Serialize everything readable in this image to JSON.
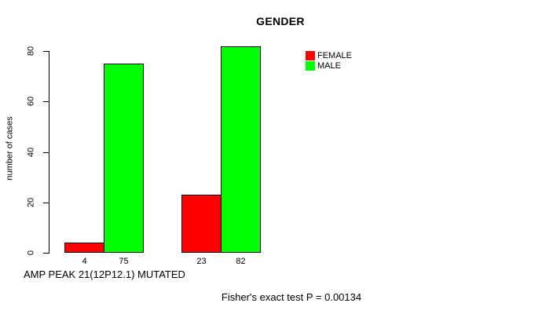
{
  "figure": {
    "title": "GENDER",
    "y_axis_label": "number of cases",
    "x_axis_label": "AMP PEAK 21(12P12.1) MUTATED",
    "annotation": "Fisher's exact test P = 0.00134"
  },
  "legend": {
    "items": [
      {
        "label": "FEMALE",
        "color": "#ff0000"
      },
      {
        "label": "MALE",
        "color": "#00ff00"
      }
    ]
  },
  "chart_data": {
    "type": "bar",
    "title": "GENDER",
    "xlabel": "AMP PEAK 21(12P12.1) MUTATED",
    "ylabel": "number of cases",
    "categories": [
      "",
      ""
    ],
    "series": [
      {
        "name": "FEMALE",
        "color": "#ff0000",
        "values": [
          4,
          23
        ]
      },
      {
        "name": "MALE",
        "color": "#00ff00",
        "values": [
          75,
          82
        ]
      }
    ],
    "yticks": [
      0,
      20,
      40,
      60,
      80
    ],
    "ylim": [
      0,
      82
    ],
    "grid": false,
    "bar_borders": "#000000",
    "value_labels_shown": true,
    "legend_position": "top-right",
    "annotation": "Fisher's exact test P = 0.00134"
  }
}
